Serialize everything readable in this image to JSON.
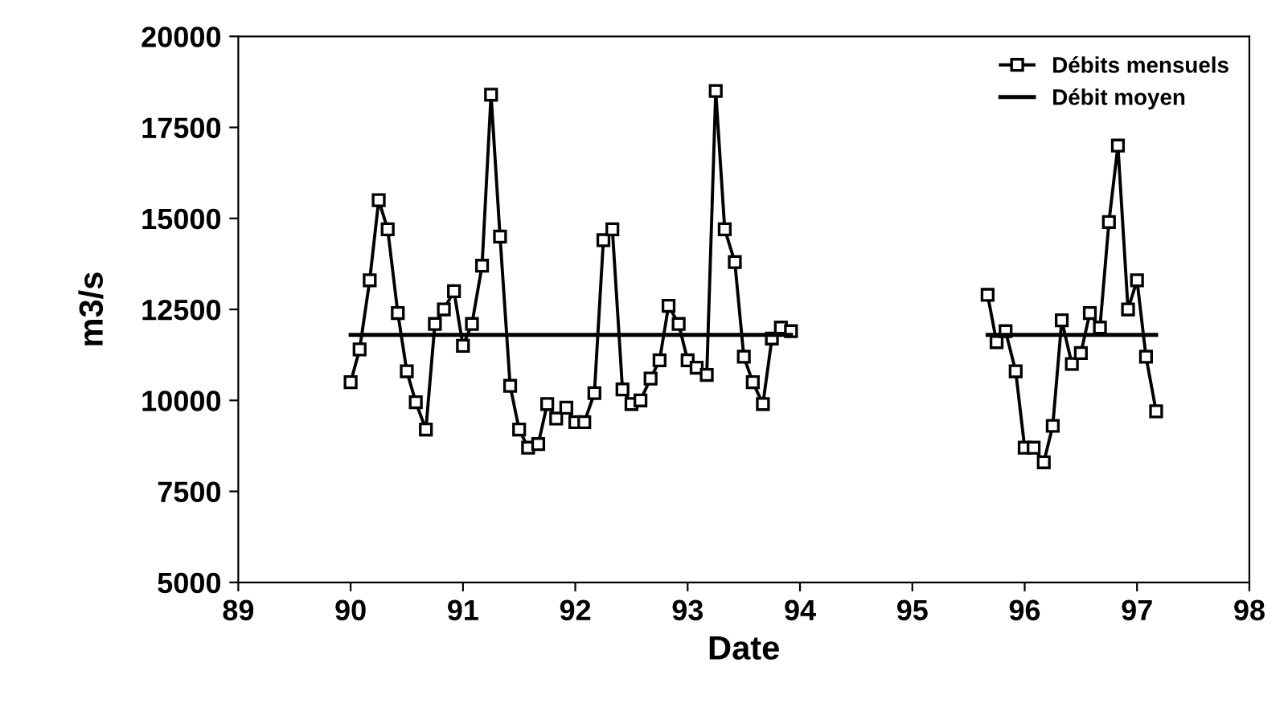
{
  "chart_data": {
    "type": "line",
    "xlabel": "Date",
    "ylabel": "m3/s",
    "xlim": [
      89,
      98
    ],
    "xticks": [
      89,
      90,
      91,
      92,
      93,
      94,
      95,
      96,
      97,
      98
    ],
    "ylim": [
      5000,
      20000
    ],
    "yticks": [
      5000,
      7500,
      10000,
      12500,
      15000,
      17500,
      20000
    ],
    "grid": false,
    "legend": "top right",
    "line_style": "solid",
    "series": [
      {
        "name": "Débits mensuels",
        "color": "#000000",
        "marker": "square",
        "x": [
          90.0,
          90.08,
          90.17,
          90.25,
          90.33,
          90.42,
          90.5,
          90.58,
          90.67,
          90.75,
          90.83,
          90.92,
          91.0,
          91.08,
          91.17,
          91.25,
          91.33,
          91.42,
          91.5,
          91.58,
          91.67,
          91.75,
          91.83,
          91.92,
          92.0,
          92.08,
          92.17,
          92.25,
          92.33,
          92.42,
          92.5,
          92.58,
          92.67,
          92.75,
          92.83,
          92.92,
          93.0,
          93.08,
          93.17,
          93.25,
          93.33,
          93.42,
          93.5,
          93.58,
          93.67,
          93.75,
          93.83,
          93.92,
          94.8,
          95.67,
          95.75,
          95.83,
          95.92,
          96.0,
          96.08,
          96.17,
          96.25,
          96.33,
          96.42,
          96.5,
          96.58,
          96.67,
          96.75,
          96.83,
          96.92,
          97.0,
          97.08,
          97.17
        ],
        "values": [
          10500,
          11400,
          13300,
          15500,
          14700,
          12400,
          10800,
          9950,
          9200,
          12100,
          12500,
          13000,
          11500,
          12100,
          13700,
          18400,
          14500,
          10400,
          9200,
          8700,
          8800,
          9900,
          9500,
          9800,
          9400,
          9400,
          10200,
          14400,
          14700,
          10300,
          9900,
          10000,
          10600,
          11100,
          12600,
          12100,
          11100,
          10900,
          10700,
          18500,
          14700,
          13800,
          11200,
          10500,
          9900,
          11700,
          12000,
          11900,
          null,
          12900,
          11600,
          11900,
          10800,
          8700,
          8700,
          8300,
          9300,
          12200,
          11000,
          11300,
          12400,
          12000,
          14900,
          17000,
          12500,
          13300,
          11200,
          9700
        ]
      },
      {
        "name": "Débit moyen",
        "color": "#000000",
        "marker": "none",
        "x": [
          90.0,
          93.92,
          94.8,
          95.67,
          97.17
        ],
        "values": [
          11800,
          11800,
          null,
          11800,
          11800
        ]
      }
    ]
  }
}
